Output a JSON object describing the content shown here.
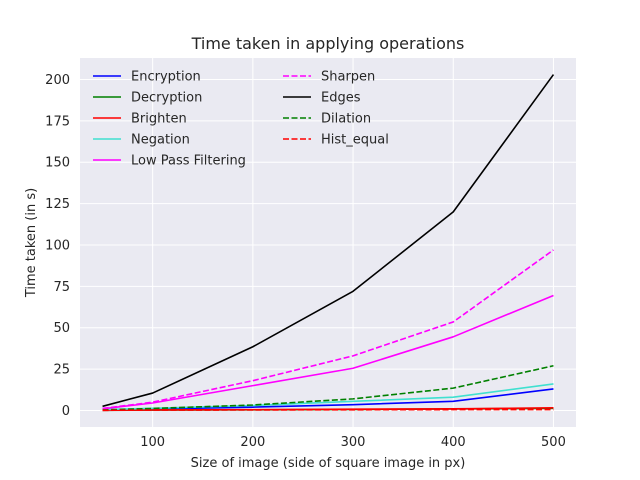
{
  "chart_data": {
    "type": "line",
    "title": "Time taken in applying operations",
    "xlabel": "Size of image (side of square image in px)",
    "ylabel": "Time taken (in s)",
    "x": [
      50,
      100,
      200,
      300,
      400,
      500
    ],
    "xlim": [
      27.5,
      522.5
    ],
    "ylim": [
      -10,
      213
    ],
    "xticks": [
      100,
      200,
      300,
      400,
      500
    ],
    "yticks": [
      0,
      25,
      50,
      75,
      100,
      125,
      150,
      175,
      200
    ],
    "grid": true,
    "legend_position": "upper-left",
    "legend_columns": 2,
    "background_color": "#eaeaf2",
    "series": [
      {
        "name": "Encryption",
        "color": "#0000ff",
        "style": "solid",
        "values": [
          0.4,
          0.9,
          2.0,
          3.5,
          5.5,
          13.0
        ]
      },
      {
        "name": "Decryption",
        "color": "#008000",
        "style": "solid",
        "values": [
          0.1,
          0.2,
          0.4,
          0.6,
          0.9,
          1.3
        ]
      },
      {
        "name": "Brighten",
        "color": "#ff0000",
        "style": "solid",
        "values": [
          0.1,
          0.3,
          0.5,
          0.8,
          1.0,
          1.6
        ]
      },
      {
        "name": "Negation",
        "color": "#40e0d0",
        "style": "solid",
        "values": [
          0.5,
          1.3,
          3.0,
          5.5,
          8.0,
          16.0
        ]
      },
      {
        "name": "Low Pass Filtering",
        "color": "#ff00ff",
        "style": "solid",
        "values": [
          1.0,
          4.5,
          15.0,
          25.5,
          44.5,
          69.5
        ]
      },
      {
        "name": "Sharpen",
        "color": "#ff00ff",
        "style": "dashed",
        "values": [
          1.2,
          5.0,
          18.0,
          33.0,
          53.5,
          97.0
        ]
      },
      {
        "name": "Edges",
        "color": "#000000",
        "style": "solid",
        "values": [
          2.5,
          10.5,
          38.5,
          72.0,
          120.0,
          203.0
        ]
      },
      {
        "name": "Dilation",
        "color": "#008000",
        "style": "dashed",
        "values": [
          0.3,
          1.2,
          3.3,
          7.0,
          13.5,
          27.0
        ]
      },
      {
        "name": "Hist_equal",
        "color": "#ff0000",
        "style": "dashed",
        "values": [
          0.1,
          0.2,
          0.3,
          0.4,
          0.5,
          0.5
        ]
      }
    ]
  }
}
